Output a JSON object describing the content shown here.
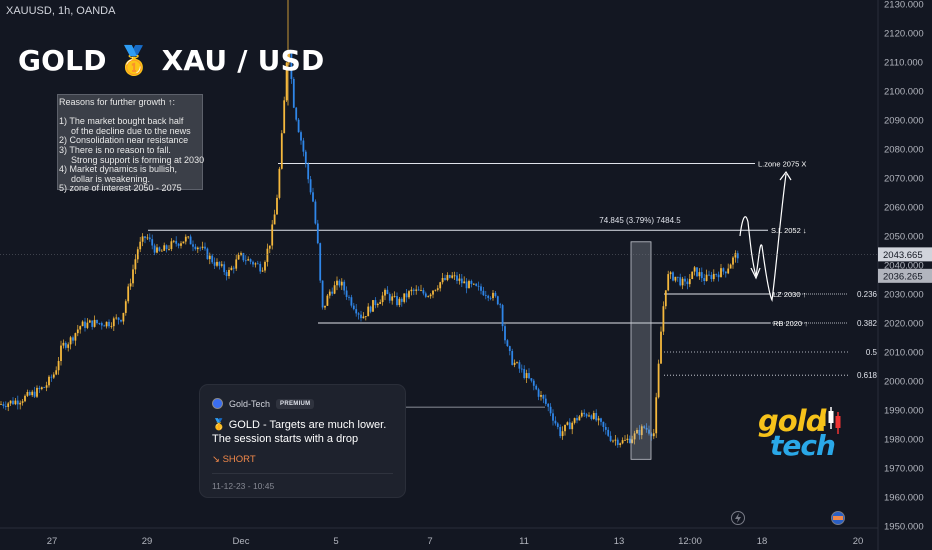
{
  "header": {
    "symbol": "XAUUSD, 1h, OANDA",
    "title": "GOLD 🥇 XAU / USD"
  },
  "reasons": {
    "lines": [
      {
        "text": "Reasons for further growth ↑:",
        "indent": false
      },
      {
        "text": "",
        "indent": false
      },
      {
        "text": "1) The market bought back half",
        "indent": false
      },
      {
        "text": "of the decline due to the news",
        "indent": true
      },
      {
        "text": "2) Consolidation near resistance",
        "indent": false
      },
      {
        "text": "3) There is no reason to fall.",
        "indent": false
      },
      {
        "text": "Strong support is forming at 2030",
        "indent": true
      },
      {
        "text": "4) Market dynamics is bullish,",
        "indent": false
      },
      {
        "text": "dollar is weakening.",
        "indent": true
      },
      {
        "text": "5) zone of interest 2050 - 2075",
        "indent": false
      }
    ]
  },
  "idea_card": {
    "author": "Gold-Tech",
    "badge": "PREMIUM",
    "title": "🥇 GOLD - Targets are much lower. The session starts with a drop",
    "direction": "↘ SHORT",
    "date": "11-12-23 - 10:45"
  },
  "logo": {
    "top": "gold",
    "bottom": "tech"
  },
  "colors": {
    "background": "#131722",
    "up_candle": "#f5b83d",
    "down_candle": "#2f86e8",
    "text": "#d1d4dc",
    "current_price_badge": "#d1d4dc",
    "secondary_price_badge": "#b2b5be",
    "logo_gold": "#f6c21a",
    "logo_tech": "#2aa8e8"
  },
  "chart_data": {
    "type": "candlestick",
    "timeframe": "1h",
    "ylim": [
      1945,
      2132
    ],
    "y_ticks": [
      "2130.000",
      "2120.000",
      "2110.000",
      "2100.000",
      "2090.000",
      "2080.000",
      "2070.000",
      "2060.000",
      "2050.000",
      "2040.000",
      "2030.000",
      "2020.000",
      "2010.000",
      "2000.000",
      "1990.000",
      "1980.000",
      "1970.000",
      "1960.000",
      "1950.000"
    ],
    "x_ticks": [
      "27",
      "29",
      "Dec",
      "5",
      "7",
      "11",
      "13",
      "12:00",
      "18",
      "20"
    ],
    "current_price": "2043.665",
    "secondary_price": "2036.265",
    "price_path": [
      [
        0,
        1992
      ],
      [
        15,
        1993
      ],
      [
        30,
        1995
      ],
      [
        45,
        1998
      ],
      [
        55,
        2003
      ],
      [
        62,
        2012
      ],
      [
        70,
        2014
      ],
      [
        80,
        2019
      ],
      [
        92,
        2020
      ],
      [
        108,
        2020
      ],
      [
        122,
        2022
      ],
      [
        130,
        2034
      ],
      [
        138,
        2046
      ],
      [
        146,
        2050
      ],
      [
        158,
        2044
      ],
      [
        172,
        2047
      ],
      [
        186,
        2049
      ],
      [
        200,
        2046
      ],
      [
        214,
        2041
      ],
      [
        228,
        2037
      ],
      [
        240,
        2043
      ],
      [
        252,
        2041
      ],
      [
        262,
        2039
      ],
      [
        270,
        2048
      ],
      [
        276,
        2060
      ],
      [
        280,
        2075
      ],
      [
        284,
        2095
      ],
      [
        288,
        2119
      ],
      [
        293,
        2097
      ],
      [
        298,
        2088
      ],
      [
        303,
        2080
      ],
      [
        308,
        2070
      ],
      [
        313,
        2062
      ],
      [
        318,
        2046
      ],
      [
        322,
        2024
      ],
      [
        330,
        2031
      ],
      [
        340,
        2034
      ],
      [
        350,
        2028
      ],
      [
        362,
        2022
      ],
      [
        372,
        2026
      ],
      [
        385,
        2030
      ],
      [
        398,
        2027
      ],
      [
        412,
        2031
      ],
      [
        428,
        2030
      ],
      [
        440,
        2034
      ],
      [
        452,
        2036
      ],
      [
        462,
        2034
      ],
      [
        475,
        2032
      ],
      [
        490,
        2030
      ],
      [
        500,
        2027
      ],
      [
        506,
        2012
      ],
      [
        512,
        2007
      ],
      [
        520,
        2004
      ],
      [
        530,
        2000
      ],
      [
        540,
        1995
      ],
      [
        550,
        1990
      ],
      [
        560,
        1982
      ],
      [
        570,
        1985
      ],
      [
        580,
        1988
      ],
      [
        590,
        1989
      ],
      [
        600,
        1985
      ],
      [
        612,
        1980
      ],
      [
        624,
        1979
      ],
      [
        634,
        1981
      ],
      [
        644,
        1984
      ],
      [
        654,
        1982
      ],
      [
        658,
        2002
      ],
      [
        662,
        2022
      ],
      [
        667,
        2036
      ],
      [
        675,
        2036
      ],
      [
        685,
        2033
      ],
      [
        695,
        2038
      ],
      [
        705,
        2035
      ],
      [
        715,
        2037
      ],
      [
        725,
        2038
      ],
      [
        735,
        2043
      ],
      [
        740,
        2044
      ]
    ],
    "levels": [
      {
        "label": "L.zone 2075  X",
        "price": 2075
      },
      {
        "label": "S.L 2052 ↓",
        "price": 2052
      },
      {
        "label": "LZ 2030 ↑",
        "price": 2030
      },
      {
        "label": "RB 2020 ↑",
        "price": 2020
      }
    ],
    "fib_levels": [
      {
        "label": "0.236",
        "price": 2030
      },
      {
        "label": "0.382",
        "price": 2020
      },
      {
        "label": "0.5",
        "price": 2010
      },
      {
        "label": "0.618",
        "price": 2002
      }
    ],
    "range_measure": {
      "label": "74.845 (3.79%) 7484.5",
      "from": 1973,
      "to": 2048
    }
  }
}
